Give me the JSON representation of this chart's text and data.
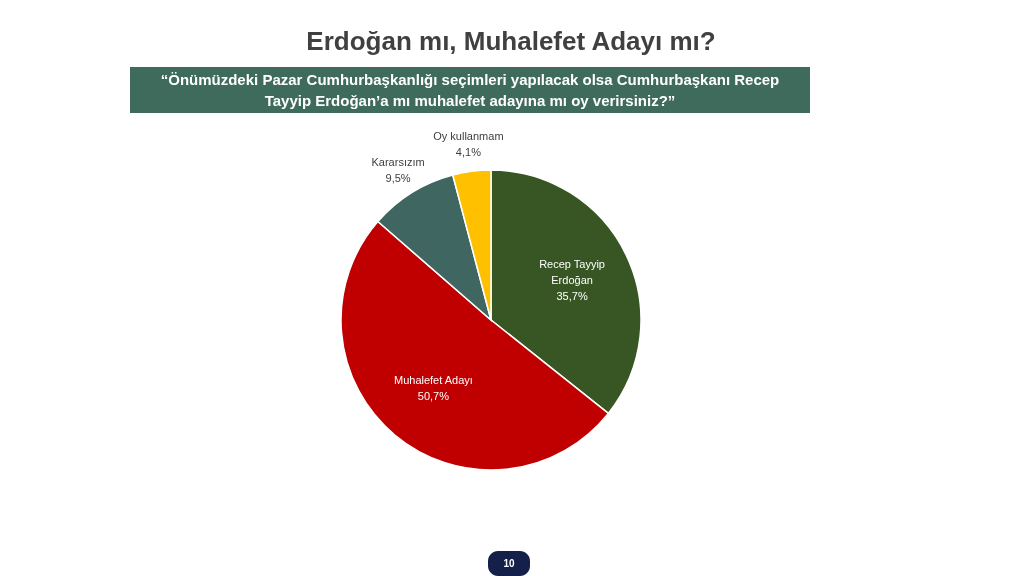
{
  "chart_data": {
    "type": "pie",
    "title": "Erdoğan mı, Muhalefet Adayı mı?",
    "subtitle": "“Önümüzdeki Pazar Cumhurbaşkanlığı seçimleri yapılacak olsa Cumhurbaşkanı Recep Tayyip Erdoğan’a mı muhalefet adayına mı oy verirsiniz?”",
    "categories": [
      "Recep Tayyip Erdoğan",
      "Muhalefet Adayı",
      "Kararsızım",
      "Oy kullanmam"
    ],
    "values": [
      35.7,
      50.7,
      9.5,
      4.1
    ],
    "colors": [
      "#375623",
      "#c00000",
      "#3f6660",
      "#ffc000"
    ],
    "value_labels": [
      "35,7%",
      "50,7%",
      "9,5%",
      "4,1%"
    ],
    "annotations": [
      "10"
    ]
  }
}
